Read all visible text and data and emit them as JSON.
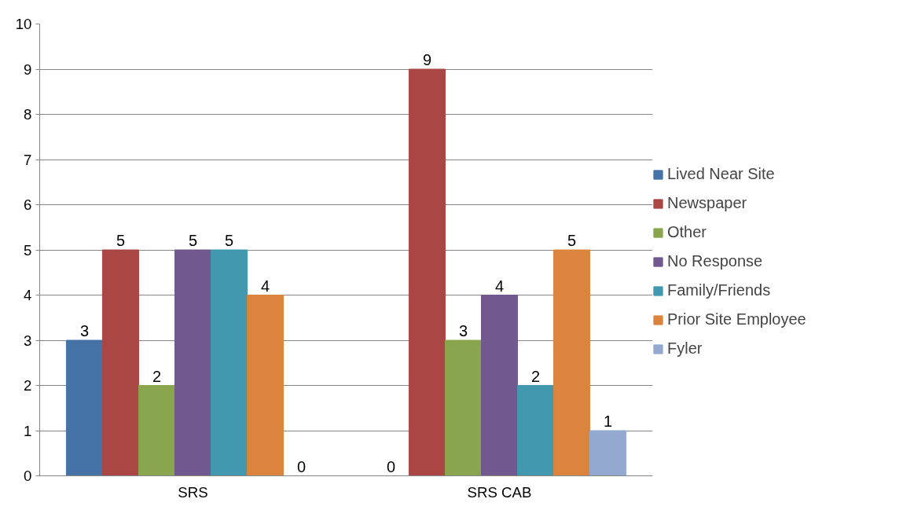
{
  "chart_data": {
    "type": "bar",
    "categories": [
      "SRS",
      "SRS CAB"
    ],
    "series": [
      {
        "name": "Lived Near Site",
        "color": "#4572a7",
        "values": [
          3,
          0
        ]
      },
      {
        "name": "Newspaper",
        "color": "#aa4643",
        "values": [
          5,
          9
        ]
      },
      {
        "name": "Other",
        "color": "#89a54e",
        "values": [
          2,
          3
        ]
      },
      {
        "name": "No Response",
        "color": "#71588f",
        "values": [
          5,
          4
        ]
      },
      {
        "name": "Family/Friends",
        "color": "#4198af",
        "values": [
          5,
          2
        ]
      },
      {
        "name": "Prior Site Employee",
        "color": "#db843d",
        "values": [
          4,
          5
        ]
      },
      {
        "name": "Fyler",
        "color": "#93a9cf",
        "values": [
          0,
          1
        ]
      }
    ],
    "ylim": [
      0,
      10
    ],
    "yticks": [
      0,
      1,
      2,
      3,
      4,
      5,
      6,
      7,
      8,
      9,
      10
    ],
    "grid": "y",
    "legend": "right",
    "data_labels": true
  }
}
